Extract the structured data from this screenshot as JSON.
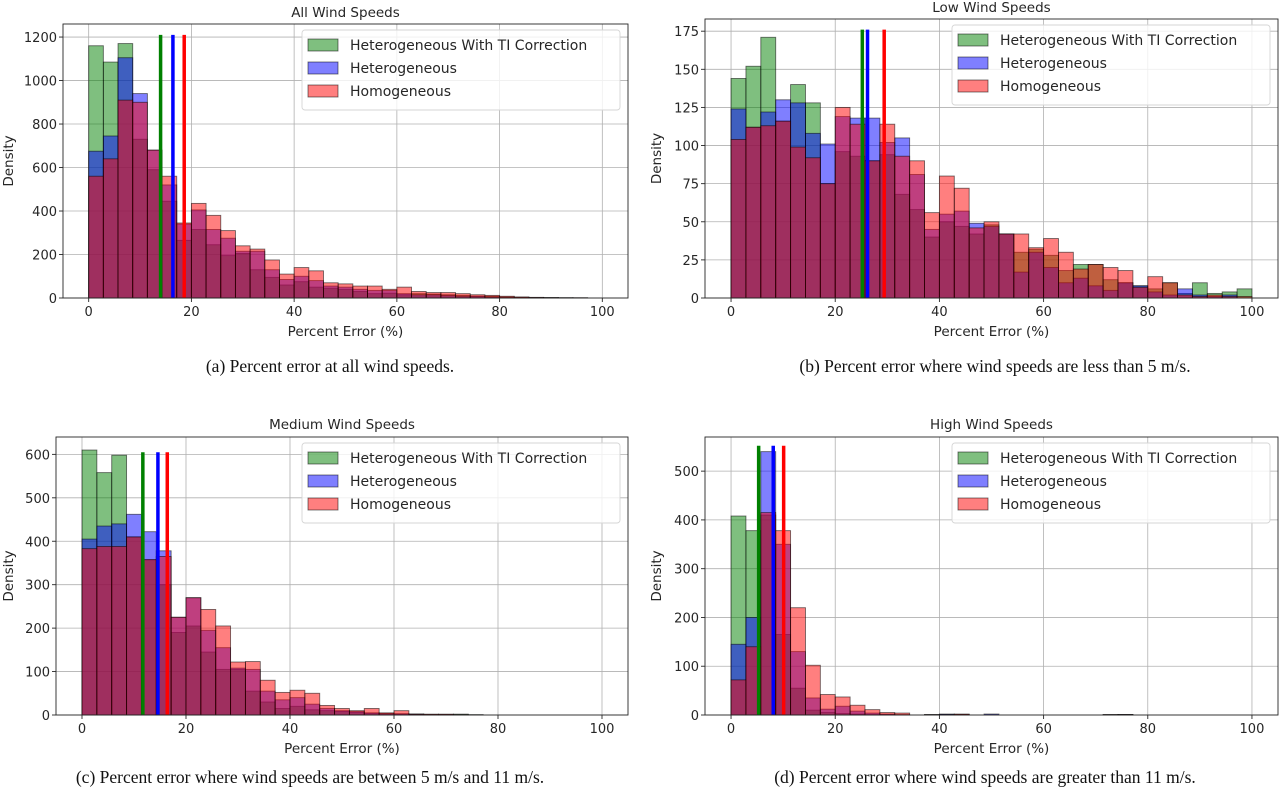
{
  "figure": {
    "legend_labels": [
      "Heterogeneous With TI Correction",
      "Heterogeneous",
      "Homogeneous"
    ]
  },
  "chart_data": [
    {
      "type": "histogram",
      "title": "All Wind Speeds",
      "xlabel": "Percent Error (%)",
      "ylabel": "Density",
      "caption": "(a) Percent error at all wind speeds.",
      "xlim": [
        -5,
        105
      ],
      "ylim": [
        0,
        1260
      ],
      "xticks": [
        0,
        20,
        40,
        60,
        80,
        100
      ],
      "yticks": [
        0,
        200,
        400,
        600,
        800,
        1000,
        1200
      ],
      "grid": true,
      "legend": "top-right",
      "bin_range": [
        0,
        100
      ],
      "bins": 35,
      "series": [
        {
          "name": "Heterogeneous With TI Correction",
          "color": "#008000",
          "alpha": 0.5,
          "values": [
            1160,
            1085,
            1170,
            730,
            590,
            445,
            265,
            315,
            245,
            195,
            205,
            130,
            95,
            60,
            75,
            50,
            45,
            40,
            30,
            20,
            22,
            15,
            20,
            18,
            15,
            12,
            8,
            8,
            5,
            3,
            2,
            2,
            1,
            1,
            0
          ],
          "mean_line": 14.0
        },
        {
          "name": "Heterogeneous",
          "color": "#0000ff",
          "alpha": 0.5,
          "values": [
            675,
            745,
            1105,
            940,
            680,
            520,
            340,
            405,
            315,
            275,
            215,
            215,
            130,
            85,
            100,
            80,
            55,
            50,
            40,
            35,
            35,
            20,
            15,
            15,
            12,
            8,
            8,
            5,
            3,
            2,
            2,
            1,
            1,
            0,
            0
          ],
          "mean_line": 16.4
        },
        {
          "name": "Homogeneous",
          "color": "#ff0000",
          "alpha": 0.5,
          "values": [
            560,
            640,
            910,
            900,
            680,
            560,
            345,
            435,
            380,
            310,
            240,
            225,
            175,
            110,
            140,
            125,
            70,
            65,
            55,
            55,
            40,
            50,
            30,
            25,
            25,
            20,
            15,
            12,
            8,
            5,
            3,
            2,
            1,
            1,
            0
          ],
          "mean_line": 18.6
        }
      ]
    },
    {
      "type": "histogram",
      "title": "Low Wind Speeds",
      "xlabel": "Percent Error (%)",
      "ylabel": "Density",
      "caption": "(b) Percent error where wind speeds are less than 5 m/s.",
      "xlim": [
        -5,
        105
      ],
      "ylim": [
        0,
        183
      ],
      "xticks": [
        0,
        20,
        40,
        60,
        80,
        100
      ],
      "yticks": [
        0,
        25,
        50,
        75,
        100,
        125,
        150,
        175
      ],
      "grid": true,
      "legend": "top-right",
      "bin_range": [
        0,
        100
      ],
      "bins": 35,
      "series": [
        {
          "name": "Heterogeneous With TI Correction",
          "color": "#008000",
          "alpha": 0.5,
          "values": [
            144,
            152,
            171,
            116,
            140,
            128,
            75,
            96,
            93,
            90,
            94,
            68,
            58,
            40,
            50,
            47,
            42,
            48,
            42,
            30,
            32,
            28,
            18,
            22,
            22,
            12,
            10,
            8,
            6,
            10,
            3,
            10,
            3,
            4,
            6
          ],
          "mean_line": 25.2
        },
        {
          "name": "Heterogeneous",
          "color": "#0000ff",
          "alpha": 0.5,
          "values": [
            124,
            112,
            122,
            130,
            128,
            108,
            101,
            119,
            118,
            118,
            102,
            105,
            81,
            45,
            55,
            57,
            49,
            47,
            42,
            17,
            30,
            20,
            10,
            13,
            8,
            5,
            10,
            8,
            4,
            2,
            6,
            2,
            1,
            2,
            0
          ],
          "mean_line": 26.2
        },
        {
          "name": "Homogeneous",
          "color": "#ff0000",
          "alpha": 0.5,
          "values": [
            104,
            112,
            113,
            116,
            99,
            92,
            75,
            125,
            114,
            90,
            114,
            93,
            90,
            56,
            80,
            72,
            46,
            50,
            42,
            42,
            33,
            39,
            30,
            19,
            22,
            20,
            18,
            7,
            14,
            10,
            2,
            1,
            2,
            1,
            1
          ],
          "mean_line": 29.4
        }
      ]
    },
    {
      "type": "histogram",
      "title": "Medium Wind Speeds",
      "xlabel": "Percent Error (%)",
      "ylabel": "Density",
      "caption": "(c) Percent error where wind speeds are between 5 m/s and 11 m/s.",
      "xlim": [
        -5,
        105
      ],
      "ylim": [
        0,
        640
      ],
      "xticks": [
        0,
        20,
        40,
        60,
        80,
        100
      ],
      "yticks": [
        0,
        100,
        200,
        300,
        400,
        500,
        600
      ],
      "grid": true,
      "legend": "top-right",
      "bin_range": [
        0,
        100
      ],
      "bins": 35,
      "series": [
        {
          "name": "Heterogeneous With TI Correction",
          "color": "#008000",
          "alpha": 0.5,
          "values": [
            610,
            558,
            598,
            410,
            357,
            300,
            190,
            205,
            145,
            105,
            105,
            55,
            30,
            15,
            20,
            12,
            10,
            8,
            6,
            4,
            3,
            2,
            2,
            1,
            1,
            2,
            1,
            0,
            0,
            0,
            0,
            0,
            0,
            0,
            0
          ],
          "mean_line": 11.7
        },
        {
          "name": "Heterogeneous",
          "color": "#0000ff",
          "alpha": 0.5,
          "values": [
            405,
            435,
            440,
            462,
            422,
            378,
            225,
            270,
            195,
            155,
            108,
            105,
            55,
            35,
            40,
            25,
            15,
            10,
            8,
            5,
            3,
            3,
            2,
            1,
            1,
            0,
            0,
            0,
            0,
            0,
            0,
            0,
            0,
            0,
            0
          ],
          "mean_line": 14.6
        },
        {
          "name": "Homogeneous",
          "color": "#ff0000",
          "alpha": 0.5,
          "values": [
            383,
            388,
            388,
            410,
            358,
            365,
            225,
            270,
            243,
            205,
            122,
            123,
            80,
            52,
            57,
            50,
            22,
            15,
            10,
            15,
            5,
            10,
            2,
            2,
            2,
            1,
            0,
            0,
            0,
            0,
            0,
            0,
            0,
            0,
            0
          ],
          "mean_line": 16.4
        }
      ]
    },
    {
      "type": "histogram",
      "title": "High Wind Speeds",
      "xlabel": "Percent Error (%)",
      "ylabel": "Density",
      "caption": "(d) Percent error where wind speeds are greater than 11 m/s.",
      "xlim": [
        -5,
        105
      ],
      "ylim": [
        0,
        570
      ],
      "xticks": [
        0,
        20,
        40,
        60,
        80,
        100
      ],
      "yticks": [
        0,
        100,
        200,
        300,
        400,
        500
      ],
      "grid": true,
      "legend": "top-right",
      "bin_range": [
        0,
        100
      ],
      "bins": 35,
      "series": [
        {
          "name": "Heterogeneous With TI Correction",
          "color": "#008000",
          "alpha": 0.5,
          "values": [
            408,
            378,
            410,
            165,
            55,
            10,
            5,
            3,
            2,
            1,
            1,
            0,
            0,
            0,
            1,
            1,
            0,
            0,
            0,
            0,
            0,
            0,
            0,
            0,
            0,
            1,
            1,
            0,
            0,
            0,
            0,
            0,
            0,
            0,
            0
          ],
          "mean_line": 5.3
        },
        {
          "name": "Heterogeneous",
          "color": "#0000ff",
          "alpha": 0.5,
          "values": [
            145,
            200,
            540,
            350,
            130,
            35,
            12,
            18,
            8,
            4,
            2,
            1,
            0,
            1,
            2,
            1,
            0,
            2,
            0,
            0,
            0,
            0,
            0,
            0,
            0,
            0,
            1,
            0,
            0,
            0,
            0,
            0,
            0,
            0,
            0
          ],
          "mean_line": 8.1
        },
        {
          "name": "Homogeneous",
          "color": "#ff0000",
          "alpha": 0.5,
          "values": [
            72,
            140,
            415,
            378,
            220,
            102,
            42,
            37,
            20,
            11,
            5,
            4,
            0,
            1,
            1,
            2,
            0,
            0,
            0,
            0,
            0,
            0,
            0,
            0,
            0,
            1,
            1,
            0,
            0,
            0,
            0,
            0,
            0,
            0,
            0
          ],
          "mean_line": 10.1
        }
      ]
    }
  ]
}
